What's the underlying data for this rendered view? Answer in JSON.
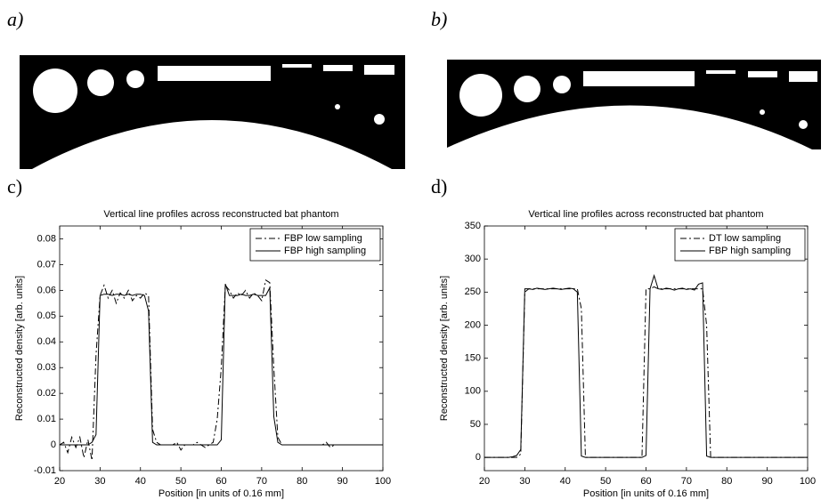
{
  "panel_labels": [
    "a)",
    "b)",
    "c)",
    "d)"
  ],
  "chart_data": [
    {
      "type": "line",
      "title": "Vertical line profiles across reconstructed bat phantom",
      "x_label": "Position [in units of 0.16 mm]",
      "y_label": "Reconstructed density [arb. units]",
      "x": [
        20,
        21,
        22,
        23,
        24,
        25,
        26,
        27,
        28,
        29,
        30,
        31,
        32,
        33,
        34,
        35,
        36,
        37,
        38,
        39,
        40,
        41,
        42,
        43,
        44,
        45,
        46,
        47,
        48,
        49,
        50,
        51,
        52,
        53,
        54,
        55,
        56,
        57,
        58,
        59,
        60,
        61,
        62,
        63,
        64,
        65,
        66,
        67,
        68,
        69,
        70,
        71,
        72,
        73,
        74,
        75,
        76,
        77,
        78,
        79,
        80,
        81,
        82,
        83,
        84,
        85,
        86,
        87,
        88,
        89,
        90,
        91,
        92,
        93,
        94,
        95,
        96,
        97,
        98,
        99,
        100
      ],
      "series": [
        {
          "name": "FBP low sampling",
          "color": "#000000",
          "style": "dash-dot",
          "values": [
            0,
            0.001,
            -0.003,
            0.003,
            -0.001,
            0.003,
            -0.005,
            0.002,
            -0.006,
            0.035,
            0.058,
            0.062,
            0.057,
            0.06,
            0.055,
            0.059,
            0.057,
            0.06,
            0.056,
            0.058,
            0.057,
            0.059,
            0.058,
            0.006,
            0.001,
            0,
            0,
            0,
            0,
            0.001,
            -0.002,
            0,
            0,
            0,
            0.001,
            0,
            -0.001,
            0,
            0.001,
            0.01,
            0.03,
            0.062,
            0.06,
            0.057,
            0.059,
            0.058,
            0.06,
            0.057,
            0.059,
            0.058,
            0.056,
            0.064,
            0.063,
            0.03,
            0.003,
            0,
            0,
            0,
            0,
            0,
            0,
            0,
            0,
            0,
            0,
            0,
            0.001,
            -0.001,
            0,
            0,
            0,
            0,
            0,
            0,
            0,
            0,
            0,
            0,
            0,
            0,
            0
          ]
        },
        {
          "name": "FBP high sampling",
          "color": "#000000",
          "style": "solid",
          "values": [
            0,
            0,
            0,
            0,
            0,
            0,
            0,
            0,
            0.001,
            0.004,
            0.058,
            0.0585,
            0.0585,
            0.058,
            0.0585,
            0.0585,
            0.058,
            0.0585,
            0.058,
            0.0585,
            0.0585,
            0.058,
            0.052,
            0.001,
            0,
            0,
            0,
            0,
            0,
            0,
            0,
            0,
            0,
            0,
            0,
            0,
            0,
            0,
            0,
            0,
            0.002,
            0.0625,
            0.058,
            0.058,
            0.058,
            0.0585,
            0.058,
            0.058,
            0.0585,
            0.058,
            0.058,
            0.058,
            0.061,
            0.011,
            0.001,
            0,
            0,
            0,
            0,
            0,
            0,
            0,
            0,
            0,
            0,
            0,
            0,
            0,
            0,
            0,
            0,
            0,
            0,
            0,
            0,
            0,
            0,
            0,
            0,
            0,
            0
          ]
        }
      ],
      "xlim": [
        20,
        100
      ],
      "xticks": [
        20,
        30,
        40,
        50,
        60,
        70,
        80,
        90,
        100
      ],
      "ylim": [
        -0.01,
        0.085
      ],
      "yticks": [
        -0.01,
        0,
        0.01,
        0.02,
        0.03,
        0.04,
        0.05,
        0.06,
        0.07,
        0.08
      ],
      "legend": "upper right",
      "grid": false
    },
    {
      "type": "line",
      "title": "Vertical line profiles across reconstructed bat phantom",
      "x_label": "Position [in units of 0.16 mm]",
      "y_label": "Reconstructed density [arb. units]",
      "x": [
        20,
        21,
        22,
        23,
        24,
        25,
        26,
        27,
        28,
        29,
        30,
        31,
        32,
        33,
        34,
        35,
        36,
        37,
        38,
        39,
        40,
        41,
        42,
        43,
        44,
        45,
        46,
        47,
        48,
        49,
        50,
        51,
        52,
        53,
        54,
        55,
        56,
        57,
        58,
        59,
        60,
        61,
        62,
        63,
        64,
        65,
        66,
        67,
        68,
        69,
        70,
        71,
        72,
        73,
        74,
        75,
        76,
        77,
        78,
        79,
        80,
        81,
        82,
        83,
        84,
        85,
        86,
        87,
        88,
        89,
        90,
        91,
        92,
        93,
        94,
        95,
        96,
        97,
        98,
        99,
        100
      ],
      "series": [
        {
          "name": "DT low sampling",
          "color": "#000000",
          "style": "dash-dot",
          "values": [
            0,
            0,
            0,
            0,
            0,
            0,
            0,
            0,
            0,
            5,
            250,
            255,
            255,
            255,
            255,
            255,
            255,
            255,
            255,
            255,
            255,
            255,
            255,
            255,
            225,
            0,
            0,
            0,
            0,
            0,
            0,
            0,
            0,
            0,
            0,
            0,
            0,
            0,
            0,
            0,
            255,
            255,
            258,
            255,
            255,
            255,
            255,
            255,
            255,
            255,
            255,
            255,
            255,
            255,
            255,
            200,
            0,
            0,
            0,
            0,
            0,
            0,
            0,
            0,
            0,
            0,
            0,
            0,
            0,
            0,
            0,
            0,
            0,
            0,
            0,
            0,
            0,
            0,
            0,
            0,
            0
          ]
        },
        {
          "name": "FBP high sampling",
          "color": "#000000",
          "style": "solid",
          "values": [
            0,
            0,
            0,
            0,
            0,
            0,
            0,
            1,
            3,
            12,
            255,
            255,
            254,
            256,
            255,
            254,
            255,
            256,
            255,
            254,
            255,
            256,
            255,
            250,
            2,
            0,
            0,
            0,
            0,
            0,
            0,
            0,
            0,
            0,
            0,
            0,
            0,
            0,
            0,
            0,
            3,
            255,
            275,
            255,
            254,
            256,
            255,
            253,
            255,
            256,
            254,
            255,
            253,
            262,
            264,
            2,
            0,
            0,
            0,
            0,
            0,
            0,
            0,
            0,
            0,
            0,
            0,
            0,
            0,
            0,
            0,
            0,
            0,
            0,
            0,
            0,
            0,
            0,
            0,
            0,
            0
          ]
        }
      ],
      "xlim": [
        20,
        100
      ],
      "xticks": [
        20,
        30,
        40,
        50,
        60,
        70,
        80,
        90,
        100
      ],
      "ylim": [
        -20,
        350
      ],
      "yticks": [
        0,
        50,
        100,
        150,
        200,
        250,
        300,
        350
      ],
      "legend": "upper right",
      "grid": false
    }
  ]
}
